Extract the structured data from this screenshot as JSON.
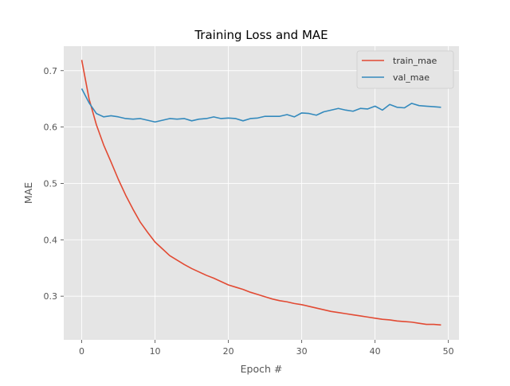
{
  "chart_data": {
    "type": "line",
    "title": "Training Loss and MAE",
    "xlabel": "Epoch #",
    "ylabel": "MAE",
    "xlim": [
      -2.45,
      51.45
    ],
    "ylim": [
      0.2226,
      0.7434
    ],
    "x_ticks": [
      0,
      10,
      20,
      30,
      40,
      50
    ],
    "y_ticks": [
      0.3,
      0.4,
      0.5,
      0.6,
      0.7
    ],
    "grid": true,
    "legend_position": "top-right",
    "style": "ggplot",
    "colors": {
      "background": "#E5E5E5",
      "grid": "#FFFFFF",
      "train": "#E24A33",
      "val": "#348ABD"
    },
    "x": [
      0,
      1,
      2,
      3,
      4,
      5,
      6,
      7,
      8,
      9,
      10,
      11,
      12,
      13,
      14,
      15,
      16,
      17,
      18,
      19,
      20,
      21,
      22,
      23,
      24,
      25,
      26,
      27,
      28,
      29,
      30,
      31,
      32,
      33,
      34,
      35,
      36,
      37,
      38,
      39,
      40,
      41,
      42,
      43,
      44,
      45,
      46,
      47,
      48,
      49
    ],
    "series": [
      {
        "name": "train_mae",
        "color": "#E24A33",
        "values": [
          0.719,
          0.65,
          0.604,
          0.568,
          0.538,
          0.507,
          0.479,
          0.454,
          0.431,
          0.413,
          0.396,
          0.384,
          0.372,
          0.364,
          0.356,
          0.349,
          0.343,
          0.337,
          0.332,
          0.326,
          0.32,
          0.316,
          0.312,
          0.307,
          0.303,
          0.299,
          0.295,
          0.292,
          0.29,
          0.287,
          0.285,
          0.282,
          0.279,
          0.276,
          0.273,
          0.271,
          0.269,
          0.267,
          0.265,
          0.263,
          0.261,
          0.259,
          0.258,
          0.256,
          0.255,
          0.254,
          0.252,
          0.25,
          0.25,
          0.249
        ]
      },
      {
        "name": "val_mae",
        "color": "#348ABD",
        "values": [
          0.668,
          0.643,
          0.624,
          0.618,
          0.62,
          0.618,
          0.615,
          0.614,
          0.615,
          0.612,
          0.609,
          0.612,
          0.615,
          0.614,
          0.615,
          0.611,
          0.614,
          0.615,
          0.618,
          0.615,
          0.616,
          0.615,
          0.611,
          0.615,
          0.616,
          0.619,
          0.619,
          0.619,
          0.622,
          0.618,
          0.625,
          0.624,
          0.621,
          0.627,
          0.63,
          0.633,
          0.63,
          0.628,
          0.633,
          0.632,
          0.637,
          0.63,
          0.64,
          0.635,
          0.634,
          0.642,
          0.638,
          0.637,
          0.636,
          0.635
        ]
      }
    ]
  }
}
